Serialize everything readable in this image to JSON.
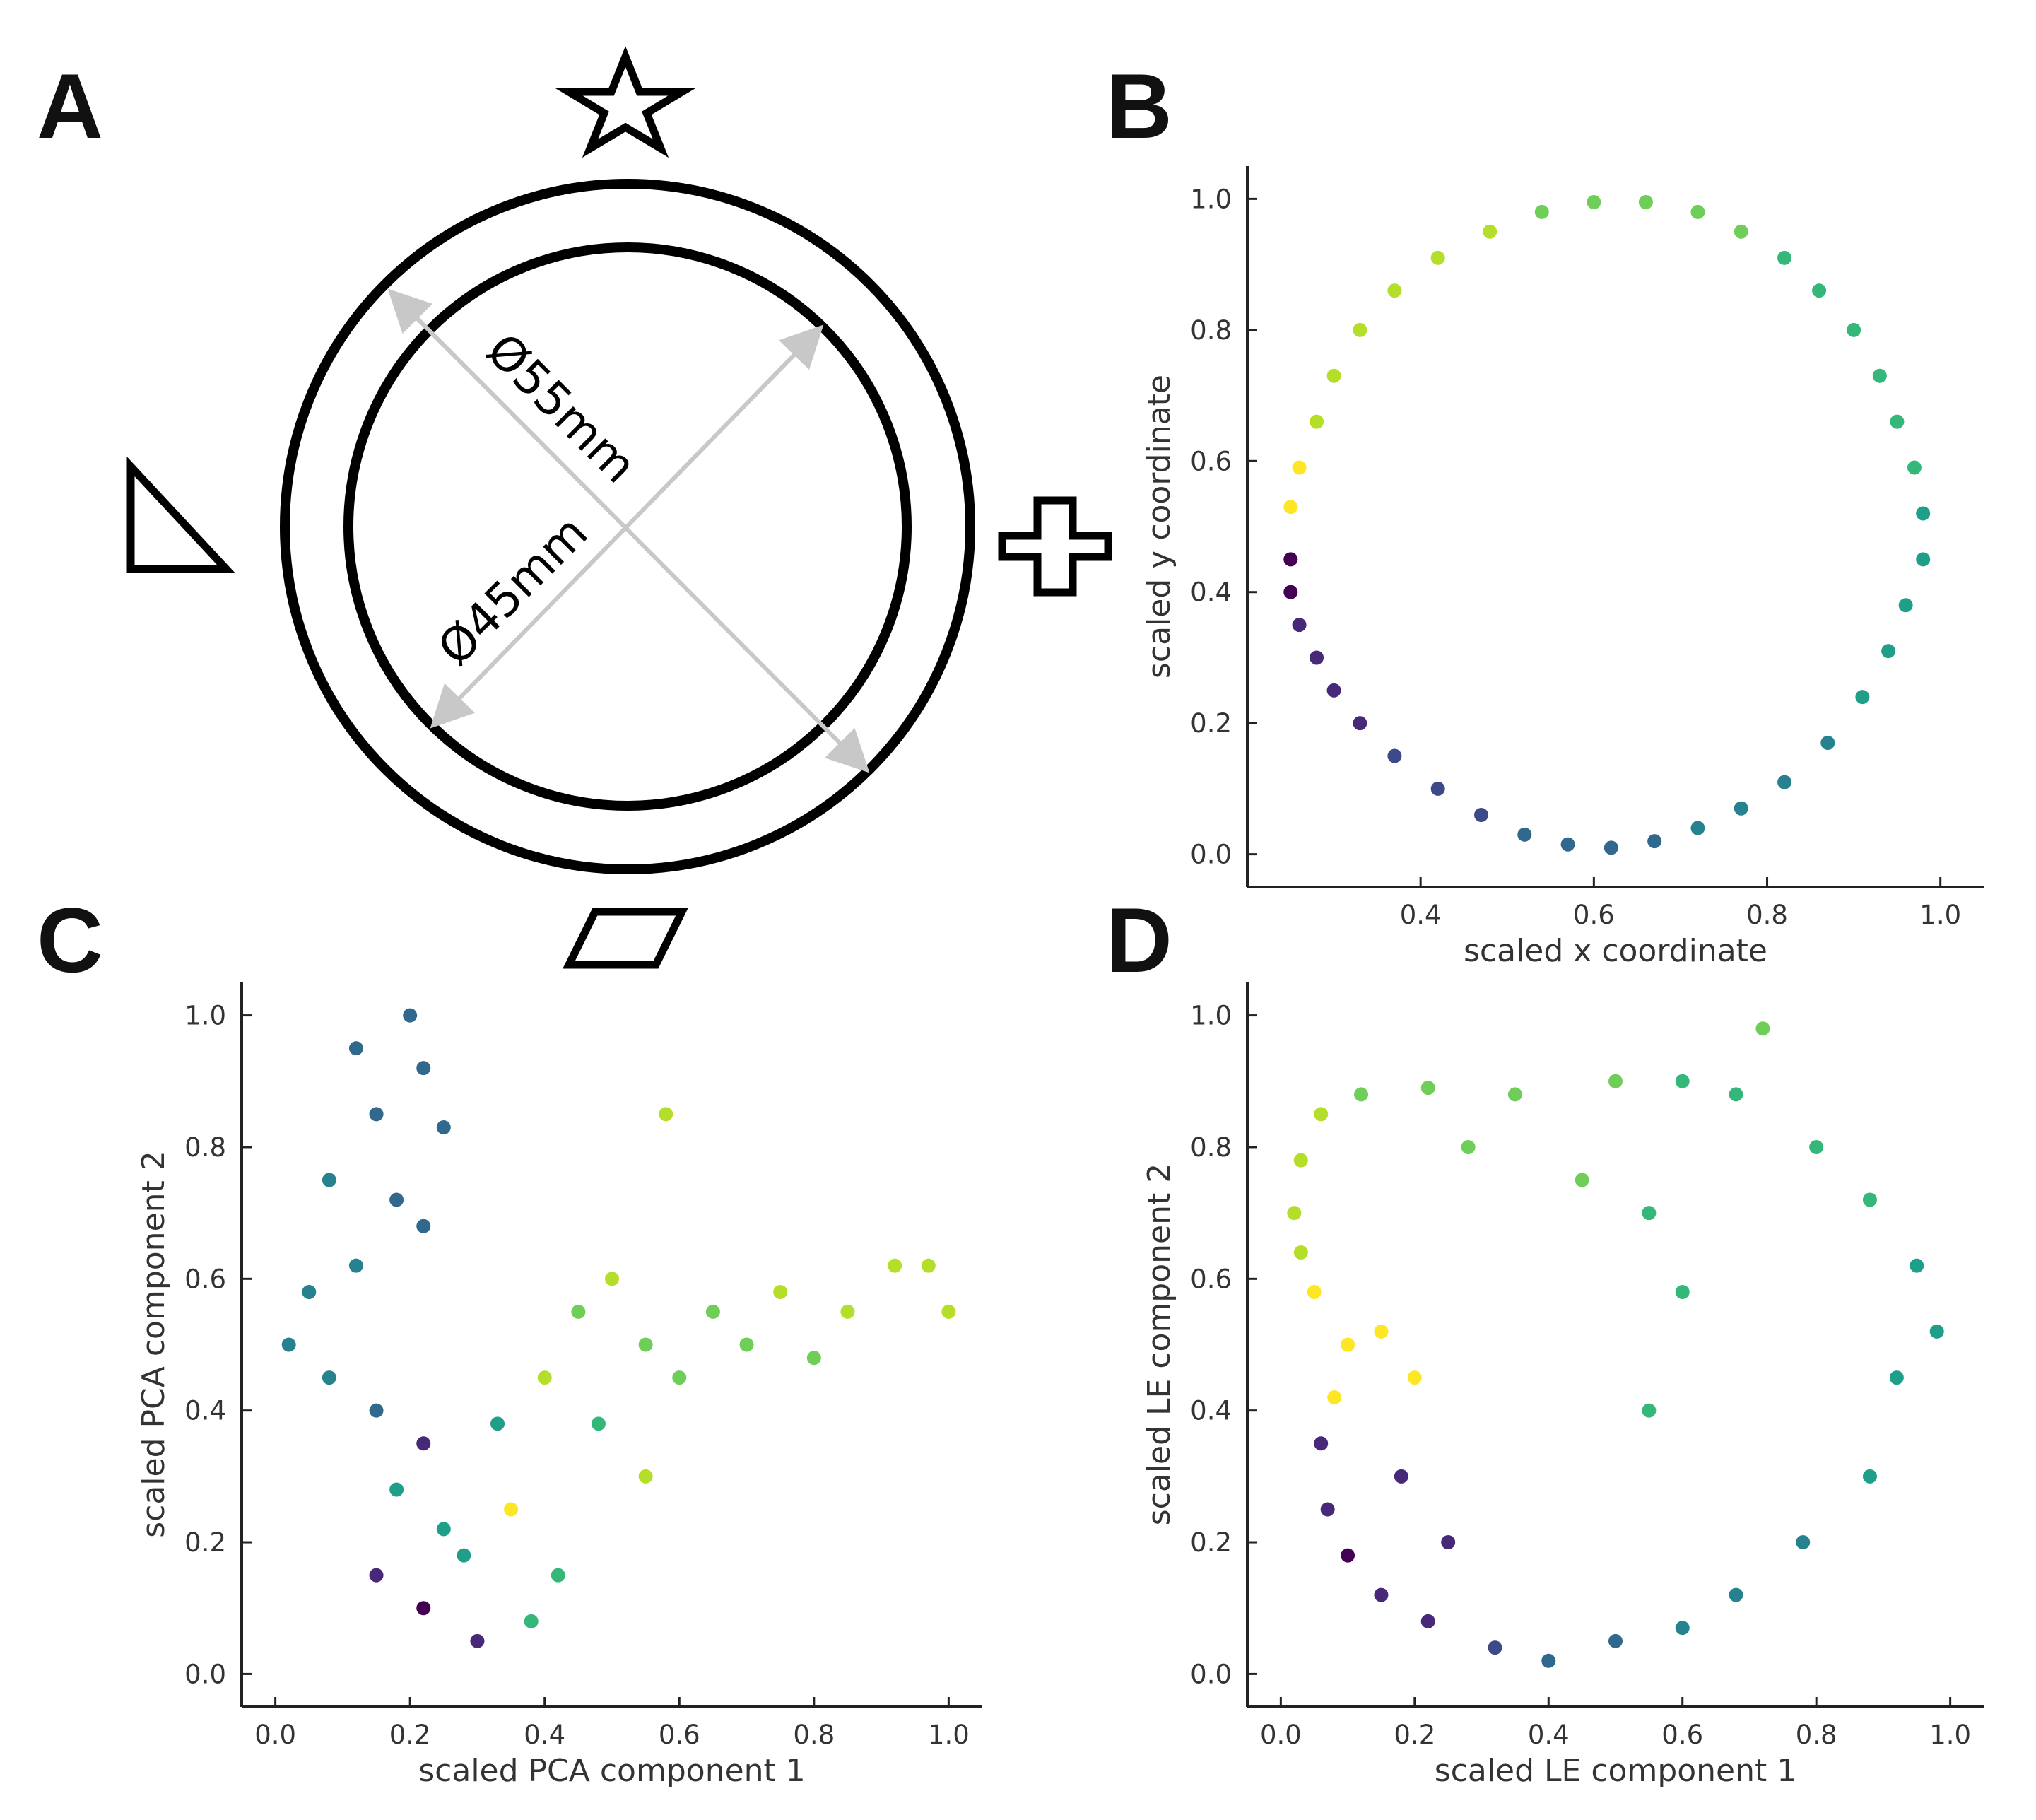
{
  "panels": {
    "A": {
      "letter": "A",
      "outer_label": "Ø55mm",
      "inner_label": "Ø45mm"
    },
    "B": {
      "letter": "B"
    },
    "C": {
      "letter": "C"
    },
    "D": {
      "letter": "D"
    }
  },
  "colors": {
    "viridis": [
      "#440154",
      "#482878",
      "#3e4989",
      "#31688e",
      "#26828e",
      "#1f9e89",
      "#35b779",
      "#6ece58",
      "#b5de2b",
      "#fde725"
    ]
  },
  "chart_data": [
    {
      "id": "B",
      "type": "scatter",
      "xlabel": "scaled x coordinate",
      "ylabel": "scaled y coordinate",
      "xlim": [
        0.2,
        1.05
      ],
      "ylim": [
        -0.05,
        1.05
      ],
      "xticks": [
        0.4,
        0.6,
        0.8,
        1.0
      ],
      "yticks": [
        0.0,
        0.2,
        0.4,
        0.6,
        0.8,
        1.0
      ],
      "xticklabels": [
        "0.4",
        "0.6",
        "0.8",
        "1.0"
      ],
      "yticklabels": [
        "0.0",
        "0.2",
        "0.4",
        "0.6",
        "0.8",
        "1.0"
      ],
      "points": [
        [
          0.25,
          0.45,
          0.02
        ],
        [
          0.25,
          0.4,
          0.05
        ],
        [
          0.26,
          0.35,
          0.08
        ],
        [
          0.28,
          0.3,
          0.1
        ],
        [
          0.3,
          0.25,
          0.13
        ],
        [
          0.33,
          0.2,
          0.16
        ],
        [
          0.37,
          0.15,
          0.19
        ],
        [
          0.42,
          0.1,
          0.22
        ],
        [
          0.47,
          0.06,
          0.25
        ],
        [
          0.52,
          0.03,
          0.28
        ],
        [
          0.57,
          0.015,
          0.31
        ],
        [
          0.62,
          0.01,
          0.33
        ],
        [
          0.67,
          0.02,
          0.36
        ],
        [
          0.72,
          0.04,
          0.39
        ],
        [
          0.77,
          0.07,
          0.42
        ],
        [
          0.82,
          0.11,
          0.45
        ],
        [
          0.87,
          0.17,
          0.48
        ],
        [
          0.91,
          0.24,
          0.51
        ],
        [
          0.94,
          0.31,
          0.54
        ],
        [
          0.96,
          0.38,
          0.56
        ],
        [
          0.98,
          0.45,
          0.58
        ],
        [
          0.98,
          0.52,
          0.6
        ],
        [
          0.97,
          0.59,
          0.62
        ],
        [
          0.95,
          0.66,
          0.64
        ],
        [
          0.93,
          0.73,
          0.66
        ],
        [
          0.9,
          0.8,
          0.68
        ],
        [
          0.86,
          0.86,
          0.7
        ],
        [
          0.82,
          0.91,
          0.72
        ],
        [
          0.77,
          0.95,
          0.74
        ],
        [
          0.72,
          0.98,
          0.76
        ],
        [
          0.66,
          0.995,
          0.78
        ],
        [
          0.6,
          0.995,
          0.8
        ],
        [
          0.54,
          0.98,
          0.82
        ],
        [
          0.48,
          0.95,
          0.84
        ],
        [
          0.42,
          0.91,
          0.86
        ],
        [
          0.37,
          0.86,
          0.88
        ],
        [
          0.33,
          0.8,
          0.9
        ],
        [
          0.3,
          0.73,
          0.92
        ],
        [
          0.28,
          0.66,
          0.94
        ],
        [
          0.26,
          0.59,
          0.97
        ],
        [
          0.25,
          0.53,
          0.99
        ]
      ]
    },
    {
      "id": "C",
      "type": "scatter",
      "xlabel": "scaled PCA component 1",
      "ylabel": "scaled PCA component 2",
      "xlim": [
        -0.05,
        1.05
      ],
      "ylim": [
        -0.05,
        1.05
      ],
      "xticks": [
        0.0,
        0.2,
        0.4,
        0.6,
        0.8,
        1.0
      ],
      "yticks": [
        0.0,
        0.2,
        0.4,
        0.6,
        0.8,
        1.0
      ],
      "xticklabels": [
        "0.0",
        "0.2",
        "0.4",
        "0.6",
        "0.8",
        "1.0"
      ],
      "yticklabels": [
        "0.0",
        "0.2",
        "0.4",
        "0.6",
        "0.8",
        "1.0"
      ],
      "points": [
        [
          0.12,
          0.95,
          0.35
        ],
        [
          0.2,
          1.0,
          0.38
        ],
        [
          0.22,
          0.92,
          0.33
        ],
        [
          0.15,
          0.85,
          0.36
        ],
        [
          0.25,
          0.83,
          0.3
        ],
        [
          0.08,
          0.75,
          0.4
        ],
        [
          0.18,
          0.72,
          0.32
        ],
        [
          0.22,
          0.68,
          0.36
        ],
        [
          0.12,
          0.62,
          0.42
        ],
        [
          0.05,
          0.58,
          0.44
        ],
        [
          0.02,
          0.5,
          0.46
        ],
        [
          0.08,
          0.45,
          0.42
        ],
        [
          0.15,
          0.4,
          0.28
        ],
        [
          0.22,
          0.35,
          0.12
        ],
        [
          0.18,
          0.28,
          0.5
        ],
        [
          0.25,
          0.22,
          0.55
        ],
        [
          0.15,
          0.15,
          0.08
        ],
        [
          0.22,
          0.1,
          0.05
        ],
        [
          0.3,
          0.05,
          0.1
        ],
        [
          0.28,
          0.18,
          0.6
        ],
        [
          0.35,
          0.25,
          0.95
        ],
        [
          0.33,
          0.38,
          0.55
        ],
        [
          0.4,
          0.45,
          0.92
        ],
        [
          0.45,
          0.55,
          0.8
        ],
        [
          0.5,
          0.6,
          0.85
        ],
        [
          0.55,
          0.5,
          0.78
        ],
        [
          0.6,
          0.45,
          0.76
        ],
        [
          0.65,
          0.55,
          0.82
        ],
        [
          0.7,
          0.5,
          0.8
        ],
        [
          0.75,
          0.58,
          0.84
        ],
        [
          0.8,
          0.48,
          0.82
        ],
        [
          0.85,
          0.55,
          0.84
        ],
        [
          0.92,
          0.62,
          0.86
        ],
        [
          0.97,
          0.62,
          0.86
        ],
        [
          1.0,
          0.55,
          0.86
        ],
        [
          0.58,
          0.85,
          0.88
        ],
        [
          0.48,
          0.38,
          0.7
        ],
        [
          0.55,
          0.3,
          0.9
        ],
        [
          0.42,
          0.15,
          0.72
        ],
        [
          0.38,
          0.08,
          0.65
        ]
      ]
    },
    {
      "id": "D",
      "type": "scatter",
      "xlabel": "scaled LE component 1",
      "ylabel": "scaled LE component 2",
      "xlim": [
        -0.05,
        1.05
      ],
      "ylim": [
        -0.05,
        1.05
      ],
      "xticks": [
        0.0,
        0.2,
        0.4,
        0.6,
        0.8,
        1.0
      ],
      "yticks": [
        0.0,
        0.2,
        0.4,
        0.6,
        0.8,
        1.0
      ],
      "xticklabels": [
        "0.0",
        "0.2",
        "0.4",
        "0.6",
        "0.8",
        "1.0"
      ],
      "yticklabels": [
        "0.0",
        "0.2",
        "0.4",
        "0.6",
        "0.8",
        "1.0"
      ],
      "points": [
        [
          0.02,
          0.7,
          0.9
        ],
        [
          0.03,
          0.78,
          0.88
        ],
        [
          0.06,
          0.85,
          0.85
        ],
        [
          0.12,
          0.88,
          0.82
        ],
        [
          0.22,
          0.89,
          0.78
        ],
        [
          0.35,
          0.88,
          0.76
        ],
        [
          0.5,
          0.9,
          0.74
        ],
        [
          0.6,
          0.9,
          0.72
        ],
        [
          0.68,
          0.88,
          0.7
        ],
        [
          0.72,
          0.98,
          0.74
        ],
        [
          0.8,
          0.8,
          0.66
        ],
        [
          0.88,
          0.72,
          0.62
        ],
        [
          0.95,
          0.62,
          0.58
        ],
        [
          0.98,
          0.52,
          0.56
        ],
        [
          0.92,
          0.45,
          0.55
        ],
        [
          0.88,
          0.3,
          0.52
        ],
        [
          0.78,
          0.2,
          0.48
        ],
        [
          0.68,
          0.12,
          0.44
        ],
        [
          0.6,
          0.07,
          0.4
        ],
        [
          0.5,
          0.05,
          0.34
        ],
        [
          0.4,
          0.02,
          0.28
        ],
        [
          0.32,
          0.04,
          0.22
        ],
        [
          0.22,
          0.08,
          0.14
        ],
        [
          0.15,
          0.12,
          0.08
        ],
        [
          0.1,
          0.18,
          0.05
        ],
        [
          0.07,
          0.25,
          0.06
        ],
        [
          0.06,
          0.35,
          0.09
        ],
        [
          0.08,
          0.42,
          0.99
        ],
        [
          0.1,
          0.5,
          0.97
        ],
        [
          0.05,
          0.58,
          0.95
        ],
        [
          0.03,
          0.64,
          0.93
        ],
        [
          0.55,
          0.7,
          0.7
        ],
        [
          0.6,
          0.58,
          0.72
        ],
        [
          0.55,
          0.4,
          0.68
        ],
        [
          0.45,
          0.75,
          0.74
        ],
        [
          0.28,
          0.8,
          0.76
        ],
        [
          0.18,
          0.3,
          0.1
        ],
        [
          0.25,
          0.2,
          0.15
        ],
        [
          0.2,
          0.45,
          0.98
        ],
        [
          0.15,
          0.52,
          0.98
        ]
      ]
    }
  ]
}
